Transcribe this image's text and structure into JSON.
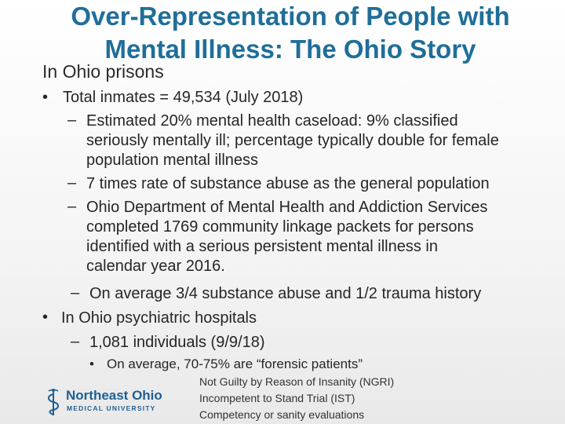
{
  "slide": {
    "title_line1": "Over-Representation of People with",
    "title_line2": "Mental Illness:  The Ohio Story",
    "subtitle": "In Ohio prisons",
    "bullet1": "Total inmates = 49,534 (July 2018)",
    "b1_sub1_l1": "Estimated 20% mental health caseload: 9% classified",
    "b1_sub1_l2": "seriously mentally ill; percentage typically double for female",
    "b1_sub1_l3": "population mental illness",
    "b1_sub2": "7 times rate of substance abuse as the general population",
    "b1_sub3_l1": "Ohio Department of Mental Health and Addiction Services",
    "b1_sub3_l2": "completed 1769 community linkage packets for persons",
    "b1_sub3_l3": "identified with a serious persistent mental illness in",
    "b1_sub3_l4": "calendar year 2016.",
    "b1_sub4": "On average 3/4 substance abuse and 1/2 trauma history",
    "bullet2": "In Ohio psychiatric hospitals",
    "b2_sub1": "1,081 individuals (9/9/18)",
    "b2_sub1_sub": "On average, 70-75% are “forensic patients”",
    "notes": [
      "Not Guilty by Reason of Insanity (NGRI)",
      "Incompetent to Stand Trial (IST)",
      "Competency or sanity evaluations"
    ],
    "bullet_char": "•",
    "dash_char": "–"
  },
  "logo": {
    "name": "Northeast Ohio",
    "sub": "MEDICAL UNIVERSITY"
  },
  "colors": {
    "title": "#1f6e9a",
    "logo": "#1f5f93"
  }
}
